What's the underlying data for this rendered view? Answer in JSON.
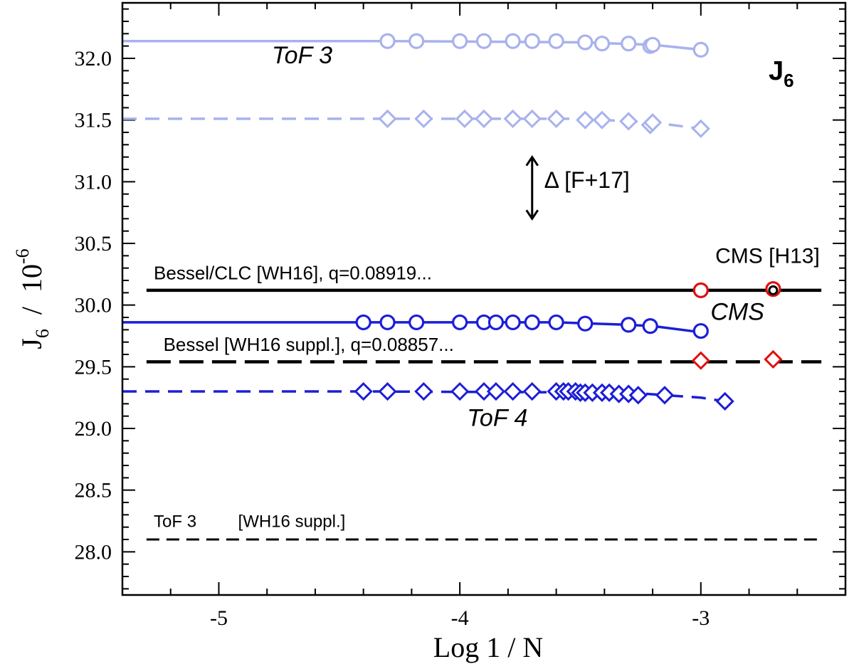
{
  "chart_data": {
    "type": "line",
    "xlim": [
      -5.4,
      -2.4
    ],
    "ylim": [
      27.65,
      32.45
    ],
    "xlabel": "Log  1 / N",
    "ylabel_main": "J",
    "ylabel_sub": "6",
    "ylabel_rest": "  /  10",
    "ylabel_exp": "-6",
    "panel_label_main": "J",
    "panel_label_sub": "6",
    "x_ticks": [
      {
        "value": -5,
        "label": "-5"
      },
      {
        "value": -4,
        "label": "-4"
      },
      {
        "value": -3,
        "label": "-3"
      }
    ],
    "y_ticks": [
      {
        "value": 28.0,
        "label": "28.0"
      },
      {
        "value": 28.5,
        "label": "28.5"
      },
      {
        "value": 29.0,
        "label": "29.0"
      },
      {
        "value": 29.5,
        "label": "29.5"
      },
      {
        "value": 30.0,
        "label": "30.0"
      },
      {
        "value": 30.5,
        "label": "30.5"
      },
      {
        "value": 31.0,
        "label": "31.0"
      },
      {
        "value": 31.5,
        "label": "31.5"
      },
      {
        "value": 32.0,
        "label": "32.0"
      }
    ],
    "series": [
      {
        "name": "ToF 3 circles",
        "color": "#a8b2ec",
        "marker": "circle",
        "dash": "solid",
        "line": [
          [
            -5.4,
            32.14
          ],
          [
            -4.3,
            32.14
          ],
          [
            -3.5,
            32.13
          ],
          [
            -3.2,
            32.11
          ],
          [
            -3.0,
            32.07
          ]
        ],
        "x": [
          -4.3,
          -4.18,
          -4.0,
          -3.9,
          -3.78,
          -3.7,
          -3.6,
          -3.48,
          -3.41,
          -3.3,
          -3.21,
          -3.2,
          -3.0
        ],
        "y": [
          32.14,
          32.14,
          32.14,
          32.14,
          32.14,
          32.14,
          32.14,
          32.13,
          32.12,
          32.12,
          32.1,
          32.11,
          32.07
        ]
      },
      {
        "name": "ToF 3 diamonds",
        "color": "#a8b2ec",
        "marker": "diamond",
        "dash": "dashed",
        "line": [
          [
            -5.4,
            31.51
          ],
          [
            -4.3,
            31.51
          ],
          [
            -3.5,
            31.51
          ],
          [
            -3.2,
            31.48
          ],
          [
            -3.0,
            31.43
          ]
        ],
        "x": [
          -4.3,
          -4.15,
          -3.98,
          -3.9,
          -3.78,
          -3.7,
          -3.6,
          -3.48,
          -3.41,
          -3.3,
          -3.21,
          -3.2,
          -3.0
        ],
        "y": [
          31.51,
          31.51,
          31.51,
          31.51,
          31.51,
          31.51,
          31.51,
          31.5,
          31.5,
          31.49,
          31.46,
          31.48,
          31.43
        ]
      },
      {
        "name": "ToF 4 circles",
        "color": "#1c1ed6",
        "marker": "circle",
        "dash": "solid",
        "line": [
          [
            -5.4,
            29.86
          ],
          [
            -4.4,
            29.86
          ],
          [
            -3.6,
            29.86
          ],
          [
            -3.3,
            29.84
          ],
          [
            -3.2,
            29.83
          ],
          [
            -3.0,
            29.78
          ]
        ],
        "x": [
          -4.4,
          -4.3,
          -4.18,
          -4.0,
          -3.9,
          -3.85,
          -3.78,
          -3.7,
          -3.6,
          -3.48,
          -3.3,
          -3.21,
          -3.0
        ],
        "y": [
          29.86,
          29.86,
          29.86,
          29.86,
          29.86,
          29.86,
          29.86,
          29.86,
          29.86,
          29.85,
          29.84,
          29.83,
          29.79
        ]
      },
      {
        "name": "ToF 4 diamonds",
        "color": "#1c1ed6",
        "marker": "diamond",
        "dash": "dashed",
        "line": [
          [
            -5.4,
            29.3
          ],
          [
            -4.4,
            29.3
          ],
          [
            -3.3,
            29.29
          ],
          [
            -3.15,
            29.27
          ],
          [
            -3.0,
            29.25
          ],
          [
            -2.9,
            29.22
          ]
        ],
        "x": [
          -4.4,
          -4.3,
          -4.15,
          -4.0,
          -3.9,
          -3.85,
          -3.78,
          -3.7,
          -3.6,
          -3.57,
          -3.55,
          -3.52,
          -3.5,
          -3.48,
          -3.45,
          -3.41,
          -3.38,
          -3.34,
          -3.3,
          -3.26,
          -3.15,
          -2.9
        ],
        "y": [
          29.3,
          29.3,
          29.3,
          29.3,
          29.3,
          29.3,
          29.3,
          29.3,
          29.3,
          29.3,
          29.3,
          29.3,
          29.29,
          29.29,
          29.29,
          29.29,
          29.29,
          29.28,
          29.28,
          29.27,
          29.27,
          29.22
        ]
      },
      {
        "name": "CMS circles",
        "color": "#e01010",
        "marker": "circle",
        "dash": "none",
        "x": [
          -3.0,
          -2.7
        ],
        "y": [
          30.12,
          30.13
        ]
      },
      {
        "name": "CMS diamonds",
        "color": "#e01010",
        "marker": "diamond",
        "dash": "none",
        "x": [
          -3.0,
          -2.7
        ],
        "y": [
          29.55,
          29.56
        ]
      },
      {
        "name": "CMS [H13]",
        "color": "#000000",
        "marker": "small-circle",
        "dash": "none",
        "x": [
          -2.7
        ],
        "y": [
          30.12
        ]
      }
    ],
    "reference_lines": [
      {
        "name": "Bessel/CLC [WH16]",
        "value": 30.12,
        "x_from": -5.3,
        "x_to": -2.5,
        "style": "solid",
        "color": "#000000"
      },
      {
        "name": "Bessel [WH16 suppl.]",
        "value": 29.54,
        "x_from": -5.3,
        "x_to": -2.5,
        "style": "long-dash",
        "color": "#000000"
      },
      {
        "name": "ToF 3 [WH16 suppl.]",
        "value": 28.1,
        "x_from": -5.3,
        "x_to": -2.5,
        "style": "dashed",
        "color": "#000000"
      }
    ],
    "delta_arrow": {
      "x": -3.7,
      "y_top": 31.2,
      "y_bottom": 30.7
    },
    "annotations": {
      "tof3": {
        "text": "ToF 3",
        "color": "#a8b2ec",
        "x": -4.78,
        "y": 31.96
      },
      "delta_label": {
        "text": "Δ [F+17]",
        "x": -3.65,
        "y": 30.95
      },
      "cms_h13": {
        "text": "CMS [H13]",
        "x": -2.94,
        "y": 30.34
      },
      "bessel_clc": {
        "text": "Bessel/CLC [WH16], q=0.08919...",
        "x": -5.27,
        "y": 30.21
      },
      "cms_red": {
        "text": "CMS",
        "color": "#e01010",
        "x": -2.96,
        "y": 29.88
      },
      "bessel_suppl": {
        "text": "Bessel [WH16 suppl.], q=0.08857...",
        "x": -5.23,
        "y": 29.63
      },
      "tof4": {
        "text": "ToF 4",
        "color": "#1c1ed6",
        "x": -3.97,
        "y": 29.02
      },
      "tof3_suppl_a": {
        "text": "ToF 3",
        "x": -5.27,
        "y": 28.2
      },
      "tof3_suppl_b": {
        "text": "[WH16 suppl.]",
        "x": -4.92,
        "y": 28.2
      }
    }
  }
}
